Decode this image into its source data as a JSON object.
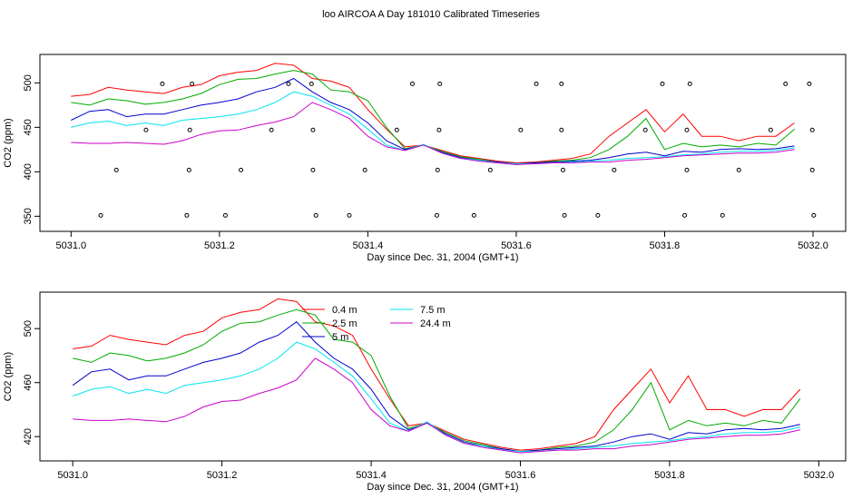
{
  "chart_data": [
    {
      "type": "line",
      "title": "loo AIRCOA A  Day 181010  Calibrated Timeseries",
      "xlabel": "Day since Dec. 31, 2004 (GMT+1)",
      "ylabel": "CO2 (ppm)",
      "xlim": [
        5030.958,
        5032.044
      ],
      "ylim": [
        333,
        532
      ],
      "xticks": [
        {
          "value": 5031,
          "label": "5031.0"
        },
        5031.2,
        5031.4,
        5031.6,
        5031.8,
        {
          "value": 5032,
          "label": "5032.0"
        }
      ],
      "yticks": [
        350,
        400,
        450,
        500
      ],
      "x": [
        5031,
        5031.025,
        5031.05,
        5031.075,
        5031.1,
        5031.125,
        5031.15,
        5031.175,
        5031.2,
        5031.225,
        5031.25,
        5031.275,
        5031.3,
        5031.325,
        5031.35,
        5031.375,
        5031.4,
        5031.425,
        5031.45,
        5031.475,
        5031.5,
        5031.525,
        5031.55,
        5031.575,
        5031.6,
        5031.625,
        5031.65,
        5031.675,
        5031.7,
        5031.725,
        5031.75,
        5031.775,
        5031.8,
        5031.825,
        5031.85,
        5031.875,
        5031.9,
        5031.925,
        5031.95,
        5031.975
      ],
      "series": [
        {
          "color": "#ff0000",
          "values": [
            485,
            487,
            495,
            492,
            490,
            488,
            495,
            498,
            508,
            512,
            514,
            522,
            520,
            505,
            502,
            495,
            470,
            448,
            428,
            430,
            424,
            418,
            415,
            412,
            410,
            411,
            413,
            415,
            420,
            440,
            455,
            470,
            445,
            465,
            440,
            440,
            435,
            440,
            440,
            455
          ]
        },
        {
          "color": "#00aa00",
          "values": [
            478,
            475,
            482,
            480,
            476,
            478,
            482,
            488,
            498,
            504,
            505,
            510,
            514,
            510,
            492,
            490,
            480,
            450,
            426,
            430,
            423,
            417,
            414,
            411,
            409,
            410,
            412,
            413,
            416,
            425,
            440,
            460,
            425,
            432,
            428,
            430,
            428,
            432,
            430,
            448
          ]
        },
        {
          "color": "#0000cc",
          "values": [
            458,
            468,
            470,
            462,
            465,
            465,
            470,
            475,
            478,
            482,
            490,
            495,
            505,
            490,
            478,
            470,
            455,
            435,
            425,
            430,
            422,
            416,
            413,
            411,
            409,
            410,
            411,
            412,
            413,
            416,
            420,
            422,
            418,
            423,
            422,
            425,
            426,
            425,
            426,
            429
          ]
        },
        {
          "color": "#00e5ee",
          "values": [
            450,
            455,
            457,
            452,
            455,
            452,
            458,
            460,
            462,
            465,
            470,
            478,
            490,
            485,
            475,
            465,
            448,
            430,
            424,
            431,
            421,
            415,
            413,
            410,
            409,
            409,
            410,
            411,
            412,
            413,
            415,
            416,
            417,
            419,
            420,
            422,
            423,
            423,
            424,
            427
          ]
        },
        {
          "color": "#cc00cc",
          "values": [
            433,
            432,
            432,
            433,
            432,
            431,
            435,
            442,
            446,
            447,
            452,
            456,
            462,
            478,
            470,
            460,
            440,
            428,
            424,
            430,
            421,
            415,
            412,
            410,
            408,
            409,
            410,
            410,
            411,
            411,
            413,
            414,
            416,
            418,
            419,
            420,
            421,
            421,
            422,
            425
          ]
        },
        {
          "marker": "circle",
          "color": "#000000",
          "x": [
            5031.123,
            5031.163,
            5031.293,
            5031.324,
            5031.46,
            5031.497,
            5031.627,
            5031.661,
            5031.797,
            5031.834,
            5031.963,
            5031.995,
            5031.101,
            5031.16,
            5031.27,
            5031.326,
            5031.439,
            5031.496,
            5031.606,
            5031.661,
            5031.774,
            5031.83,
            5031.943,
            5031.999,
            5031.061,
            5031.159,
            5031.229,
            5031.326,
            5031.396,
            5031.494,
            5031.565,
            5031.663,
            5031.732,
            5031.83,
            5031.9,
            5031.999,
            5031.04,
            5031.156,
            5031.208,
            5031.33,
            5031.375,
            5031.493,
            5031.543,
            5031.665,
            5031.71,
            5031.827,
            5031.878,
            5032.001
          ],
          "values": [
            499,
            499,
            499,
            499,
            499,
            499,
            499,
            499,
            499,
            499,
            499,
            499,
            447,
            447,
            447,
            447,
            447,
            447,
            447,
            447,
            447,
            447,
            447,
            447,
            402,
            402,
            402,
            402,
            402,
            402,
            402,
            402,
            402,
            402,
            402,
            402,
            351,
            351,
            351,
            351,
            351,
            351,
            351,
            351,
            351,
            351,
            351,
            351
          ]
        }
      ]
    },
    {
      "type": "line",
      "xlabel": "Day since Dec. 31, 2004 (GMT+1)",
      "ylabel": "CO2 (ppm)",
      "xlim": [
        5030.956,
        5032.036
      ],
      "ylim": [
        402,
        527
      ],
      "xticks": [
        {
          "value": 5031,
          "label": "5031.0"
        },
        5031.2,
        5031.4,
        5031.6,
        5031.8,
        {
          "value": 5032,
          "label": "5032.0"
        }
      ],
      "yticks": [
        420,
        460,
        500
      ],
      "legend": "top",
      "x": [
        5031,
        5031.025,
        5031.05,
        5031.075,
        5031.1,
        5031.125,
        5031.15,
        5031.175,
        5031.2,
        5031.225,
        5031.25,
        5031.275,
        5031.3,
        5031.325,
        5031.35,
        5031.375,
        5031.4,
        5031.425,
        5031.45,
        5031.475,
        5031.5,
        5031.525,
        5031.55,
        5031.575,
        5031.6,
        5031.625,
        5031.65,
        5031.675,
        5031.7,
        5031.725,
        5031.75,
        5031.775,
        5031.8,
        5031.825,
        5031.85,
        5031.875,
        5031.9,
        5031.925,
        5031.95,
        5031.975
      ],
      "series": [
        {
          "name": "0.4 m",
          "color": "#ff0000",
          "values": [
            485,
            487,
            495,
            492,
            490,
            488,
            495,
            498,
            508,
            512,
            514,
            522,
            520,
            505,
            502,
            495,
            470,
            448,
            428,
            430,
            424,
            418,
            415,
            412,
            410,
            411,
            413,
            415,
            420,
            440,
            455,
            470,
            445,
            465,
            440,
            440,
            435,
            440,
            440,
            455
          ]
        },
        {
          "name": "2.5 m",
          "color": "#00aa00",
          "values": [
            478,
            475,
            482,
            480,
            476,
            478,
            482,
            488,
            498,
            504,
            505,
            510,
            514,
            510,
            492,
            490,
            480,
            450,
            426,
            430,
            423,
            417,
            414,
            411,
            409,
            410,
            412,
            413,
            416,
            425,
            440,
            460,
            425,
            432,
            428,
            430,
            428,
            432,
            430,
            448
          ]
        },
        {
          "name": "5 m",
          "color": "#0000cc",
          "values": [
            458,
            468,
            470,
            462,
            465,
            465,
            470,
            475,
            478,
            482,
            490,
            495,
            505,
            490,
            478,
            470,
            455,
            435,
            425,
            430,
            422,
            416,
            413,
            411,
            409,
            410,
            411,
            412,
            413,
            416,
            420,
            422,
            418,
            423,
            422,
            425,
            426,
            425,
            426,
            429
          ]
        },
        {
          "name": "7.5 m",
          "color": "#00e5ee",
          "values": [
            450,
            455,
            457,
            452,
            455,
            452,
            458,
            460,
            462,
            465,
            470,
            478,
            490,
            485,
            475,
            465,
            448,
            430,
            424,
            431,
            421,
            415,
            413,
            410,
            409,
            409,
            410,
            411,
            412,
            413,
            415,
            416,
            417,
            419,
            420,
            422,
            423,
            423,
            424,
            427
          ]
        },
        {
          "name": "24.4 m",
          "color": "#cc00cc",
          "values": [
            433,
            432,
            432,
            433,
            432,
            431,
            435,
            442,
            446,
            447,
            452,
            456,
            462,
            478,
            470,
            460,
            440,
            428,
            424,
            430,
            421,
            415,
            412,
            410,
            408,
            409,
            410,
            410,
            411,
            411,
            413,
            414,
            416,
            418,
            419,
            420,
            421,
            421,
            422,
            425
          ]
        }
      ]
    }
  ]
}
